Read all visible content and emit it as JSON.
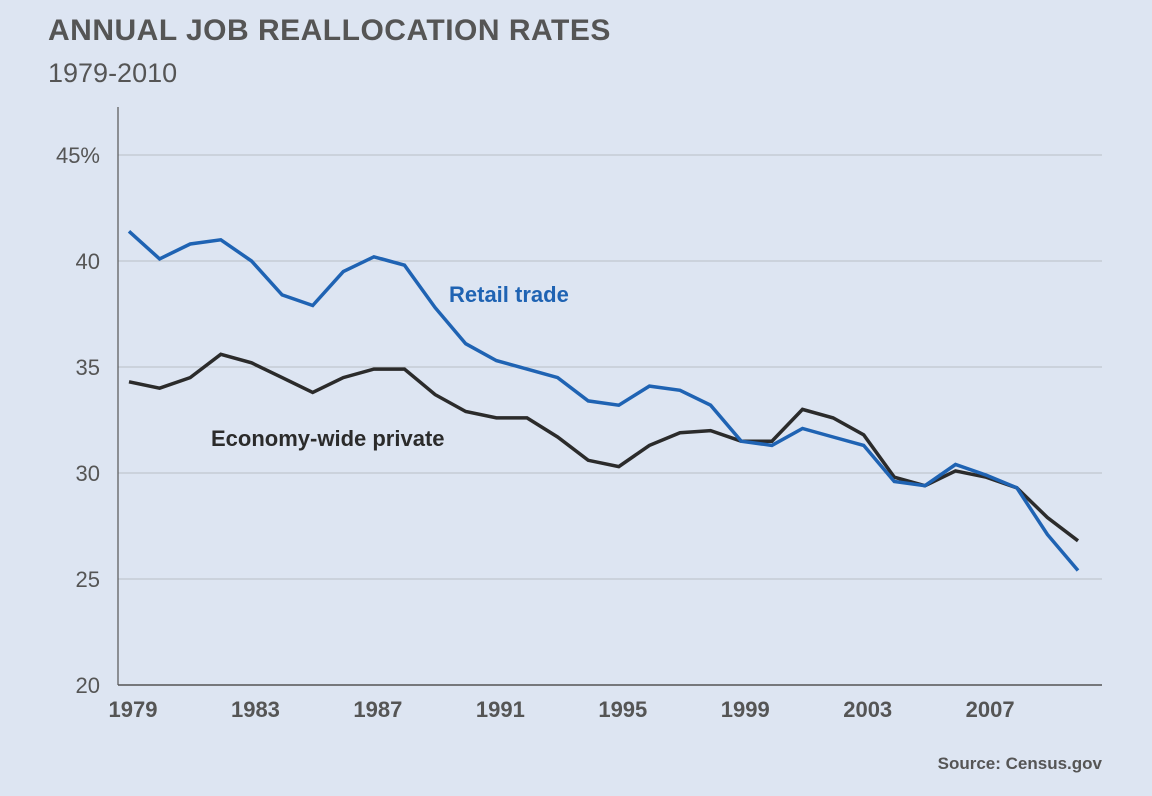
{
  "chart_data": {
    "type": "line",
    "title": "ANNUAL JOB REALLOCATION RATES",
    "subtitle": "1979-2010",
    "xlabel": "",
    "ylabel": "",
    "source": "Source: Census.gov",
    "ylim": [
      20,
      47
    ],
    "xlim": [
      1979,
      2010
    ],
    "yticks": [
      20,
      25,
      30,
      35,
      40,
      45
    ],
    "ytick_labels": [
      "20",
      "25",
      "30",
      "35",
      "40",
      "45%"
    ],
    "xticks": [
      1979,
      1983,
      1987,
      1991,
      1995,
      1999,
      2003,
      2007
    ],
    "xtick_labels": [
      "1979",
      "1983",
      "1987",
      "1991",
      "1995",
      "1999",
      "2003",
      "2007"
    ],
    "grid": true,
    "x": [
      1979,
      1980,
      1981,
      1982,
      1983,
      1984,
      1985,
      1986,
      1987,
      1988,
      1989,
      1990,
      1991,
      1992,
      1993,
      1994,
      1995,
      1996,
      1997,
      1998,
      1999,
      2000,
      2001,
      2002,
      2003,
      2004,
      2005,
      2006,
      2007,
      2008,
      2009,
      2010
    ],
    "series": [
      {
        "name": "Retail trade",
        "color": "#1f63b3",
        "values": [
          41.4,
          40.1,
          40.8,
          41.0,
          40.0,
          38.4,
          37.9,
          39.5,
          40.2,
          39.8,
          37.8,
          36.1,
          35.3,
          34.9,
          34.5,
          33.4,
          33.2,
          34.1,
          33.9,
          33.2,
          31.5,
          31.3,
          32.1,
          31.7,
          31.3,
          29.6,
          29.4,
          30.4,
          29.9,
          29.3,
          27.1,
          25.4
        ]
      },
      {
        "name": "Economy-wide private",
        "color": "#2b2b2b",
        "values": [
          34.3,
          34.0,
          34.5,
          35.6,
          35.2,
          34.5,
          33.8,
          34.5,
          34.9,
          34.9,
          33.7,
          32.9,
          32.6,
          32.6,
          31.7,
          30.6,
          30.3,
          31.3,
          31.9,
          32.0,
          31.5,
          31.5,
          33.0,
          32.6,
          31.8,
          29.8,
          29.4,
          30.1,
          29.8,
          29.3,
          27.9,
          26.8
        ]
      }
    ]
  }
}
